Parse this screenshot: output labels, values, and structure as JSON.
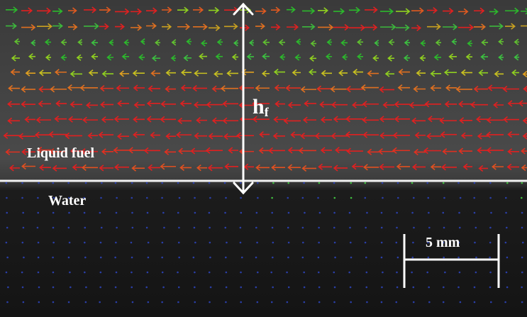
{
  "labels": {
    "fuel": "Liquid fuel",
    "water": "Water",
    "height_symbol": "h",
    "height_subscript": "f",
    "scale_bar": "5 mm"
  }
}
